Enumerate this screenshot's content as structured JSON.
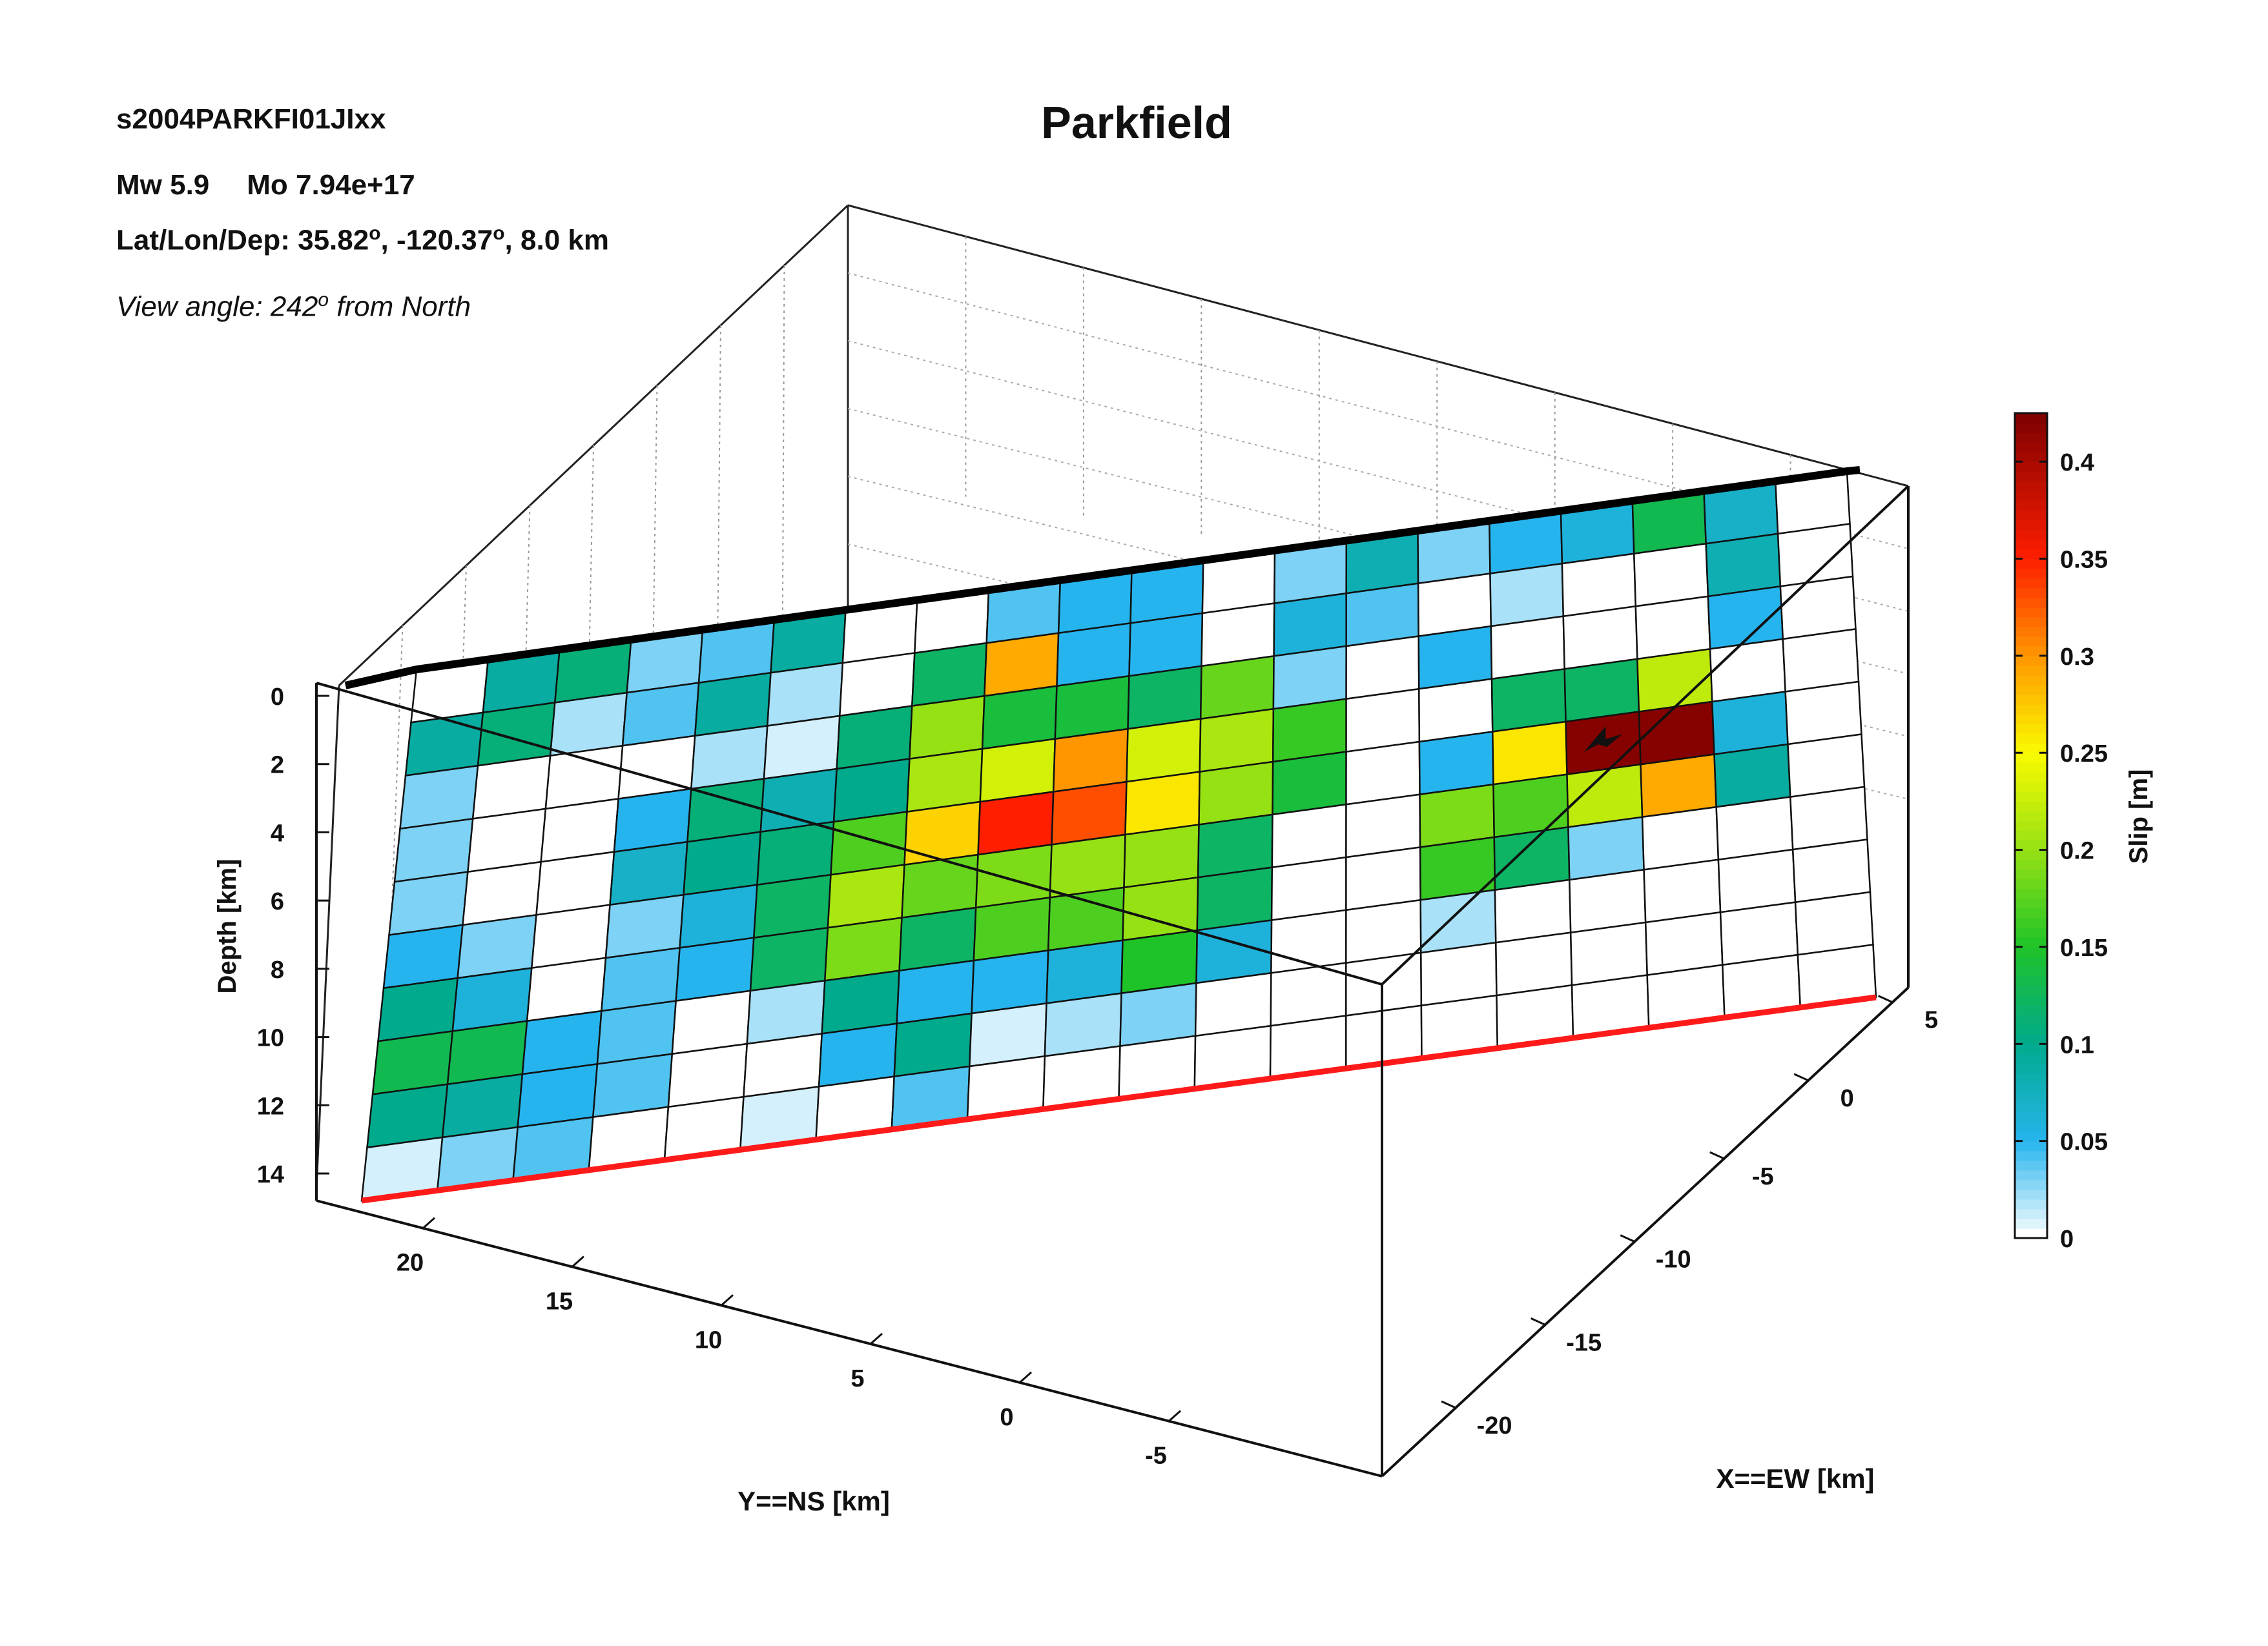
{
  "header": {
    "title": "Parkfield",
    "event_id": "s2004PARKFI01JIxx",
    "magnitude": "Mw 5.9",
    "moment": "Mo 7.94e+17",
    "location_label": "Lat/Lon/Dep:",
    "latitude": "35.82",
    "longitude": "-120.37",
    "depth": "8.0 km",
    "degree_symbol": "o",
    "view_prefix": "View angle: 242",
    "view_suffix": "from North"
  },
  "chart_data": {
    "type": "heatmap",
    "title": "Parkfield",
    "z_axis": {
      "label": "Depth [km]",
      "ticks": [
        0,
        2,
        4,
        6,
        8,
        10,
        12,
        14
      ],
      "range": [
        0,
        14.6
      ]
    },
    "y_axis": {
      "label": "Y==NS [km]",
      "ticks": [
        20,
        15,
        10,
        5,
        0,
        -5
      ]
    },
    "x_axis": {
      "label": "X==EW [km]",
      "ticks": [
        5,
        0,
        -5,
        -10,
        -15,
        -20
      ]
    },
    "colorbar": {
      "label": "Slip [m]",
      "ticks": [
        0,
        0.05,
        0.1,
        0.15,
        0.2,
        0.25,
        0.3,
        0.35,
        0.4
      ],
      "range": [
        0,
        0.425
      ]
    },
    "grid": true,
    "fault_columns": 20,
    "fault_rows": 10,
    "slip": [
      [
        0.0,
        0.09,
        0.11,
        0.03,
        0.04,
        0.09,
        0.0,
        0.0,
        0.04,
        0.05,
        0.05,
        0.0,
        0.03,
        0.08,
        0.03,
        0.05,
        0.06,
        0.13,
        0.07,
        0.0
      ],
      [
        0.09,
        0.11,
        0.02,
        0.04,
        0.09,
        0.02,
        0.0,
        0.12,
        0.29,
        0.05,
        0.05,
        0.0,
        0.06,
        0.04,
        0.0,
        0.02,
        0.0,
        0.0,
        0.08,
        0.0
      ],
      [
        0.03,
        0.0,
        0.0,
        0.0,
        0.02,
        0.01,
        0.11,
        0.2,
        0.14,
        0.14,
        0.12,
        0.18,
        0.03,
        0.0,
        0.05,
        0.0,
        0.0,
        0.0,
        0.05,
        0.0
      ],
      [
        0.03,
        0.0,
        0.0,
        0.05,
        0.11,
        0.08,
        0.1,
        0.21,
        0.23,
        0.3,
        0.23,
        0.21,
        0.16,
        0.0,
        0.0,
        0.12,
        0.12,
        0.22,
        0.0,
        0.0
      ],
      [
        0.03,
        0.0,
        0.0,
        0.07,
        0.1,
        0.11,
        0.17,
        0.27,
        0.35,
        0.33,
        0.26,
        0.2,
        0.14,
        0.0,
        0.05,
        0.26,
        0.42,
        0.42,
        0.06,
        0.0
      ],
      [
        0.05,
        0.03,
        0.0,
        0.03,
        0.06,
        0.12,
        0.21,
        0.18,
        0.19,
        0.2,
        0.2,
        0.12,
        0.0,
        0.0,
        0.19,
        0.17,
        0.22,
        0.29,
        0.09,
        0.0
      ],
      [
        0.1,
        0.06,
        0.0,
        0.04,
        0.05,
        0.12,
        0.19,
        0.12,
        0.17,
        0.17,
        0.2,
        0.12,
        0.0,
        0.0,
        0.16,
        0.12,
        0.03,
        0.0,
        0.0,
        0.0
      ],
      [
        0.13,
        0.13,
        0.05,
        0.04,
        0.0,
        0.02,
        0.1,
        0.05,
        0.05,
        0.06,
        0.15,
        0.06,
        0.0,
        0.0,
        0.02,
        0.0,
        0.0,
        0.0,
        0.0,
        0.0
      ],
      [
        0.1,
        0.09,
        0.05,
        0.04,
        0.0,
        0.0,
        0.05,
        0.1,
        0.01,
        0.02,
        0.03,
        0.0,
        0.0,
        0.0,
        0.0,
        0.0,
        0.0,
        0.0,
        0.0,
        0.0
      ],
      [
        0.01,
        0.03,
        0.04,
        0.0,
        0.0,
        0.01,
        0.0,
        0.04,
        0.0,
        0.0,
        0.0,
        0.0,
        0.0,
        0.0,
        0.0,
        0.0,
        0.0,
        0.0,
        0.0,
        0.0
      ]
    ],
    "hypocenter": {
      "column": 16,
      "row": 4
    }
  }
}
